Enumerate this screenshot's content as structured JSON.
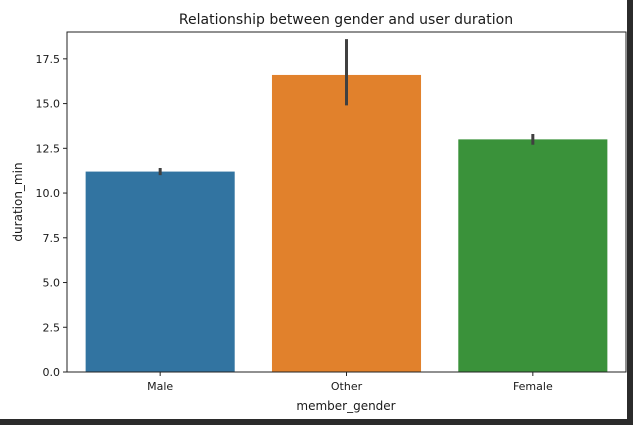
{
  "chart_data": {
    "type": "bar",
    "title": "Relationship between gender and user duration",
    "xlabel": "member_gender",
    "ylabel": "duration_min",
    "categories": [
      "Male",
      "Other",
      "Female"
    ],
    "values": [
      11.2,
      16.6,
      13.0
    ],
    "error_bars": [
      {
        "low": 11.0,
        "high": 11.4
      },
      {
        "low": 14.9,
        "high": 18.6
      },
      {
        "low": 12.7,
        "high": 13.3
      }
    ],
    "colors": [
      "#3274a1",
      "#e1812c",
      "#3a923a"
    ],
    "error_color": "#404040",
    "ylim": [
      0,
      19.0
    ],
    "yticks": [
      0.0,
      2.5,
      5.0,
      7.5,
      10.0,
      12.5,
      15.0,
      17.5
    ],
    "ytick_labels": [
      "0.0",
      "2.5",
      "5.0",
      "7.5",
      "10.0",
      "12.5",
      "15.0",
      "17.5"
    ],
    "grid": false,
    "legend": "none"
  }
}
